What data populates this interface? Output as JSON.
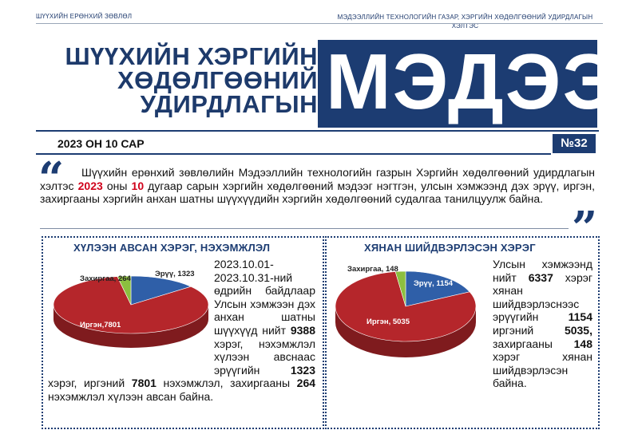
{
  "header": {
    "left_label": "ШҮҮХИЙН ЕРӨНХИЙ ЗӨВЛӨЛ",
    "right_label_line1": "МЭДЭЭЛЛИЙН ТЕХНОЛОГИЙН ГАЗАР, ХЭРГИЙН ХӨДӨЛГӨӨНИЙ УДИРДЛАГЫН",
    "right_label_line2": "ХЭЛТЭС"
  },
  "masthead": {
    "line1": "ШҮҮХИЙН ХЭРГИЙН",
    "line2": "ХӨДӨЛГӨӨНИЙ",
    "line3": "УДИРДЛАГЫН",
    "big_word": "МЭДЭЭ",
    "brand_color": "#1c3c72"
  },
  "issue": {
    "date": "2023 ОН 10 САР",
    "number": "№32"
  },
  "intro": {
    "part1": "Шүүхийн ерөнхий зөвлөлийн Мэдээллийн технологийн газрын Хэргийн хөдөлгөөний удирдлагын хэлтэс ",
    "year": "2023",
    "part2": " оны ",
    "month": "10",
    "part3": " дугаар сарын хэргийн хөдөлгөөний мэдээг нэгтгэн, улсын хэмжээнд дэх эрүү, иргэн, захиргааны хэргийн анхан шатны шүүхүүдийн хэргийн хөдөлгөөний судалгаа танилцуулж байна.",
    "highlight_color": "#d0021b"
  },
  "panel_left": {
    "title": "ХҮЛЭЭН АВСАН ХЭРЭГ, НЭХЭМЖЛЭЛ",
    "text_a": "2023.10.01-2023.10.31-ний өдрийн байдлаар Улсын хэмжээн дэх анхан шатны шүүхүүд нийт ",
    "total": "9388",
    "text_b": " хэрэг, нэхэмжлэл хүлээн авснаас эрүүгийн ",
    "criminal": "1323",
    "text_c": " хэрэг, иргэний ",
    "civil": "7801",
    "text_d": " нэхэмжлэл, захиргааны ",
    "admin": "264",
    "text_e": " нэхэмжлэл хүлээн авсан байна."
  },
  "panel_right": {
    "title": "ХЯНАН ШИЙДВЭРЛЭСЭН ХЭРЭГ",
    "text_a": "Улсын хэмжээнд нийт ",
    "total": "6337",
    "text_b": " хэрэг хянан шийдвэрлэснээс эрүүгийн ",
    "criminal": "1154",
    "text_c": " иргэний ",
    "civil": "5035,",
    "text_d": " захиргааны ",
    "admin": "148",
    "text_e": " хэрэг хянан шийдвэрлэсэн байна."
  },
  "chart_data": [
    {
      "type": "pie",
      "title": "ХҮЛЭЭН АВСАН ХЭРЭГ, НЭХЭМЖЛЭЛ",
      "slices": [
        {
          "name": "Эрүү",
          "value": 1323,
          "label": "Эрүү, 1323",
          "color": "#2f5fa8"
        },
        {
          "name": "Иргэн",
          "value": 7801,
          "label": "Иргэн,7801",
          "color": "#b5262b"
        },
        {
          "name": "Захиргаа",
          "value": 264,
          "label": "Захиргаа, 264",
          "color": "#8cbf3f"
        }
      ]
    },
    {
      "type": "pie",
      "title": "ХЯНАН ШИЙДВЭРЛЭСЭН ХЭРЭГ",
      "slices": [
        {
          "name": "Эрүү",
          "value": 1154,
          "label": "Эрүү, 1154",
          "color": "#2f5fa8"
        },
        {
          "name": "Иргэн",
          "value": 5035,
          "label": "Иргэн, 5035",
          "color": "#b5262b"
        },
        {
          "name": "Захиргаа",
          "value": 148,
          "label": "Захиргаа, 148",
          "color": "#8cbf3f"
        }
      ]
    }
  ]
}
